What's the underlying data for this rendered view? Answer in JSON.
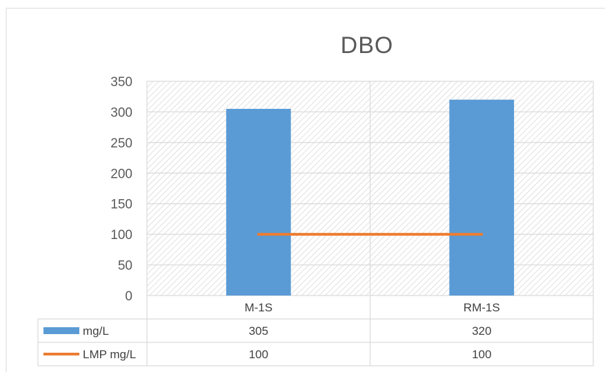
{
  "chart_data": {
    "type": "bar",
    "title": "DBO",
    "categories": [
      "M-1S",
      "RM-1S"
    ],
    "series": [
      {
        "name": "mg/L",
        "type": "bar",
        "values": [
          305,
          320
        ],
        "color": "#5B9BD5"
      },
      {
        "name": "LMP mg/L",
        "type": "line",
        "values": [
          100,
          100
        ],
        "color": "#ED7D31"
      }
    ],
    "yticks": [
      "0",
      "50",
      "100",
      "150",
      "200",
      "250",
      "300",
      "350"
    ],
    "ylim": [
      0,
      350
    ],
    "grid": true,
    "legend": "data-table",
    "table_values": [
      [
        "305",
        "320"
      ],
      [
        "100",
        "100"
      ]
    ]
  }
}
